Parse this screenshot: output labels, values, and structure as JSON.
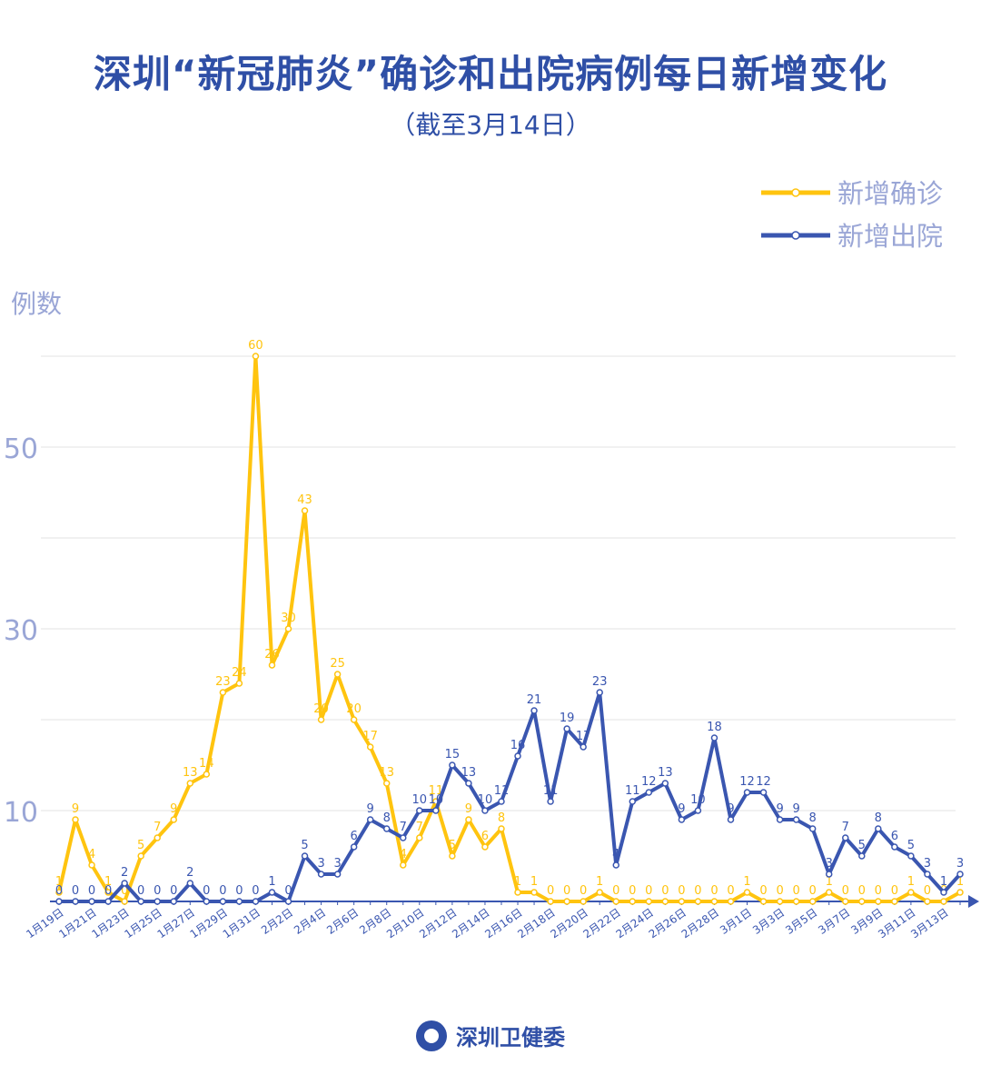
{
  "title": "深圳“新冠肺炎”确诊和出院病例每日新增变化",
  "subtitle": "（截至3月14日）",
  "footer": {
    "org": "深圳卫健委"
  },
  "chart_data": {
    "type": "line",
    "ylabel": "例数",
    "ylim": [
      0,
      60
    ],
    "yticks": [
      10,
      30,
      50
    ],
    "grid": true,
    "legend_position": "top-right",
    "x": [
      "1月19日",
      "1月20日",
      "1月21日",
      "1月22日",
      "1月23日",
      "1月24日",
      "1月25日",
      "1月26日",
      "1月27日",
      "1月28日",
      "1月29日",
      "1月30日",
      "1月31日",
      "2月1日",
      "2月2日",
      "2月3日",
      "2月4日",
      "2月5日",
      "2月6日",
      "2月7日",
      "2月8日",
      "2月9日",
      "2月10日",
      "2月11日",
      "2月12日",
      "2月13日",
      "2月14日",
      "2月15日",
      "2月16日",
      "2月17日",
      "2月18日",
      "2月19日",
      "2月20日",
      "2月21日",
      "2月22日",
      "2月23日",
      "2月24日",
      "2月25日",
      "2月26日",
      "2月27日",
      "2月28日",
      "2月29日",
      "3月1日",
      "3月2日",
      "3月3日",
      "3月4日",
      "3月5日",
      "3月6日",
      "3月7日",
      "3月8日",
      "3月9日",
      "3月10日",
      "3月11日",
      "3月12日",
      "3月13日",
      "3月14日"
    ],
    "x_tick_labels_every": 2,
    "series": [
      {
        "name": "新增确诊",
        "color": "#FFC40F",
        "values": [
          1,
          9,
          4,
          1,
          0,
          5,
          7,
          9,
          13,
          14,
          23,
          24,
          60,
          26,
          30,
          43,
          20,
          25,
          20,
          17,
          13,
          4,
          7,
          11,
          5,
          9,
          6,
          8,
          1,
          1,
          0,
          0,
          0,
          1,
          0,
          0,
          0,
          0,
          0,
          0,
          0,
          0,
          1,
          0,
          0,
          0,
          0,
          1,
          0,
          0,
          0,
          0,
          1,
          0,
          0,
          1
        ]
      },
      {
        "name": "新增出院",
        "color": "#3A56B0",
        "values": [
          0,
          0,
          0,
          0,
          2,
          0,
          0,
          0,
          2,
          0,
          0,
          0,
          0,
          1,
          0,
          5,
          3,
          3,
          6,
          9,
          8,
          7,
          10,
          10,
          15,
          13,
          10,
          11,
          16,
          21,
          11,
          19,
          17,
          23,
          4,
          11,
          12,
          13,
          9,
          10,
          18,
          9,
          12,
          12,
          9,
          9,
          8,
          3,
          7,
          5,
          8,
          6,
          5,
          3,
          1,
          3
        ]
      }
    ]
  }
}
